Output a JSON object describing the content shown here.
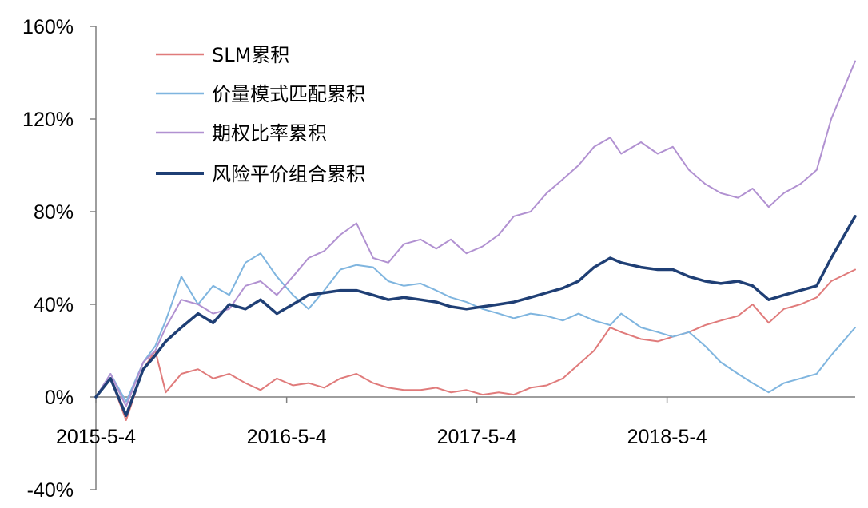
{
  "chart_data": {
    "type": "line",
    "title": "",
    "xlabel": "",
    "ylabel": "",
    "ylim": [
      -40,
      160
    ],
    "y_unit": "%",
    "y_ticks": [
      "160%",
      "120%",
      "80%",
      "40%",
      "0%",
      "-40%"
    ],
    "y_tick_values": [
      160,
      120,
      80,
      40,
      0,
      -40
    ],
    "x_ticks": [
      "2015-5-4",
      "2016-5-4",
      "2017-5-4",
      "2018-5-4"
    ],
    "x_tick_values": [
      "2015-05-04",
      "2016-05-04",
      "2017-05-04",
      "2018-05-04"
    ],
    "xlim": [
      "2015-05-04",
      "2019-04-30"
    ],
    "grid": false,
    "legend_position": "top-left",
    "series": [
      {
        "name": "SLM累积",
        "color": "#e07b7b",
        "x": [
          "2015-05-04",
          "2015-06-01",
          "2015-07-01",
          "2015-08-03",
          "2015-08-26",
          "2015-09-15",
          "2015-10-15",
          "2015-11-16",
          "2015-12-15",
          "2016-01-15",
          "2016-02-15",
          "2016-03-15",
          "2016-04-15",
          "2016-05-16",
          "2016-06-15",
          "2016-07-15",
          "2016-08-15",
          "2016-09-15",
          "2016-10-17",
          "2016-11-15",
          "2016-12-15",
          "2017-01-16",
          "2017-02-15",
          "2017-03-15",
          "2017-04-14",
          "2017-05-15",
          "2017-06-15",
          "2017-07-14",
          "2017-08-15",
          "2017-09-15",
          "2017-10-16",
          "2017-11-15",
          "2017-12-15",
          "2018-01-15",
          "2018-02-05",
          "2018-03-15",
          "2018-04-16",
          "2018-05-15",
          "2018-06-15",
          "2018-07-16",
          "2018-08-15",
          "2018-09-17",
          "2018-10-15",
          "2018-11-15",
          "2018-12-14",
          "2019-01-15",
          "2019-02-15",
          "2019-03-15",
          "2019-04-30"
        ],
        "values": [
          0,
          8,
          -10,
          12,
          20,
          2,
          10,
          12,
          8,
          10,
          6,
          3,
          8,
          5,
          6,
          4,
          8,
          10,
          6,
          4,
          3,
          3,
          4,
          2,
          3,
          1,
          2,
          1,
          4,
          5,
          8,
          14,
          20,
          30,
          28,
          25,
          24,
          26,
          28,
          31,
          33,
          35,
          40,
          32,
          38,
          40,
          43,
          50,
          55
        ]
      },
      {
        "name": "价量模式匹配累积",
        "color": "#7fb5df",
        "x": [
          "2015-05-04",
          "2015-06-01",
          "2015-07-01",
          "2015-08-03",
          "2015-08-26",
          "2015-09-15",
          "2015-10-15",
          "2015-11-16",
          "2015-12-15",
          "2016-01-15",
          "2016-02-15",
          "2016-03-15",
          "2016-04-15",
          "2016-05-16",
          "2016-06-15",
          "2016-07-15",
          "2016-08-15",
          "2016-09-15",
          "2016-10-17",
          "2016-11-15",
          "2016-12-15",
          "2017-01-16",
          "2017-02-15",
          "2017-03-15",
          "2017-04-14",
          "2017-05-15",
          "2017-06-15",
          "2017-07-14",
          "2017-08-15",
          "2017-09-15",
          "2017-10-16",
          "2017-11-15",
          "2017-12-15",
          "2018-01-15",
          "2018-02-05",
          "2018-03-15",
          "2018-04-16",
          "2018-05-15",
          "2018-06-15",
          "2018-07-16",
          "2018-08-15",
          "2018-09-17",
          "2018-10-15",
          "2018-11-15",
          "2018-12-14",
          "2019-01-15",
          "2019-02-15",
          "2019-03-15",
          "2019-04-30"
        ],
        "values": [
          0,
          10,
          -2,
          15,
          22,
          33,
          52,
          40,
          48,
          44,
          58,
          62,
          52,
          44,
          38,
          46,
          55,
          57,
          56,
          50,
          48,
          49,
          46,
          43,
          41,
          38,
          36,
          34,
          36,
          35,
          33,
          36,
          33,
          31,
          36,
          30,
          28,
          26,
          28,
          22,
          15,
          10,
          6,
          2,
          6,
          8,
          10,
          18,
          30
        ]
      },
      {
        "name": "期权比率累积",
        "color": "#b191d1",
        "x": [
          "2015-05-04",
          "2015-06-01",
          "2015-07-01",
          "2015-08-03",
          "2015-08-26",
          "2015-09-15",
          "2015-10-15",
          "2015-11-16",
          "2015-12-15",
          "2016-01-15",
          "2016-02-15",
          "2016-03-15",
          "2016-04-15",
          "2016-05-16",
          "2016-06-15",
          "2016-07-15",
          "2016-08-15",
          "2016-09-15",
          "2016-10-17",
          "2016-11-15",
          "2016-12-15",
          "2017-01-16",
          "2017-02-15",
          "2017-03-15",
          "2017-04-14",
          "2017-05-15",
          "2017-06-15",
          "2017-07-14",
          "2017-08-15",
          "2017-09-15",
          "2017-10-16",
          "2017-11-15",
          "2017-12-15",
          "2018-01-15",
          "2018-02-05",
          "2018-03-15",
          "2018-04-16",
          "2018-05-15",
          "2018-06-15",
          "2018-07-16",
          "2018-08-15",
          "2018-09-17",
          "2018-10-15",
          "2018-11-15",
          "2018-12-14",
          "2019-01-15",
          "2019-02-15",
          "2019-03-15",
          "2019-04-30"
        ],
        "values": [
          0,
          10,
          -4,
          15,
          20,
          30,
          42,
          40,
          36,
          38,
          48,
          50,
          44,
          52,
          60,
          63,
          70,
          75,
          60,
          58,
          66,
          68,
          64,
          68,
          62,
          65,
          70,
          78,
          80,
          88,
          94,
          100,
          108,
          112,
          105,
          110,
          105,
          108,
          98,
          92,
          88,
          86,
          90,
          82,
          88,
          92,
          98,
          120,
          145
        ]
      },
      {
        "name": "风险平价组合累积",
        "color": "#1f3f75",
        "bold": true,
        "x": [
          "2015-05-04",
          "2015-06-01",
          "2015-07-01",
          "2015-08-03",
          "2015-08-26",
          "2015-09-15",
          "2015-10-15",
          "2015-11-16",
          "2015-12-15",
          "2016-01-15",
          "2016-02-15",
          "2016-03-15",
          "2016-04-15",
          "2016-05-16",
          "2016-06-15",
          "2016-07-15",
          "2016-08-15",
          "2016-09-15",
          "2016-10-17",
          "2016-11-15",
          "2016-12-15",
          "2017-01-16",
          "2017-02-15",
          "2017-03-15",
          "2017-04-14",
          "2017-05-15",
          "2017-06-15",
          "2017-07-14",
          "2017-08-15",
          "2017-09-15",
          "2017-10-16",
          "2017-11-15",
          "2017-12-15",
          "2018-01-15",
          "2018-02-05",
          "2018-03-15",
          "2018-04-16",
          "2018-05-15",
          "2018-06-15",
          "2018-07-16",
          "2018-08-15",
          "2018-09-17",
          "2018-10-15",
          "2018-11-15",
          "2018-12-14",
          "2019-01-15",
          "2019-02-15",
          "2019-03-15",
          "2019-04-30"
        ],
        "values": [
          0,
          8,
          -8,
          12,
          18,
          24,
          30,
          36,
          32,
          40,
          38,
          42,
          36,
          40,
          44,
          45,
          46,
          46,
          44,
          42,
          43,
          42,
          41,
          39,
          38,
          39,
          40,
          41,
          43,
          45,
          47,
          50,
          56,
          60,
          58,
          56,
          55,
          55,
          52,
          50,
          49,
          50,
          48,
          42,
          44,
          46,
          48,
          60,
          78
        ]
      }
    ]
  }
}
